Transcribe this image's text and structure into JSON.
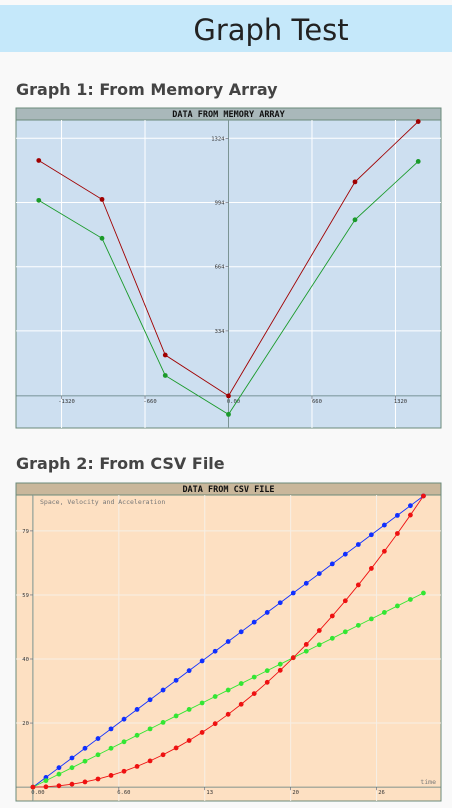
{
  "header": {
    "title": "Graph Test"
  },
  "chart_data": [
    {
      "type": "line",
      "heading": "Graph 1: From Memory Array",
      "title": "DATA FROM MEMORY ARRAY",
      "background": "#cddff0",
      "title_background": "#a9b8ba",
      "grid": true,
      "grid_color": "#ffffff",
      "x": [
        -1500,
        -1000,
        -500,
        0,
        1000,
        1500
      ],
      "series": [
        {
          "color": "#a00000",
          "values": [
            1210,
            1010,
            210,
            0,
            1100,
            1410
          ]
        },
        {
          "color": "#1a9a2a",
          "values": [
            1005,
            810,
            105,
            -95,
            905,
            1205
          ]
        }
      ],
      "xlim": [
        -1680,
        1680
      ],
      "xticks": [
        -1320,
        -660,
        {
          "value": 0,
          "label": "0.00"
        },
        660,
        1320
      ],
      "ylim": [
        -165,
        1418
      ],
      "yticks": [
        334,
        664,
        994,
        1324
      ]
    },
    {
      "type": "line",
      "heading": "Graph 2: From CSV File",
      "title": "DATA FROM CSV FILE",
      "subtitle": "Space, Velocity and Acceleration",
      "xlabel": "time",
      "background": "#fde0c2",
      "title_background": "#c9b79b",
      "grid": true,
      "grid_color": "#f6efe6",
      "x": [
        0,
        1,
        2,
        3,
        4,
        5,
        6,
        7,
        8,
        9,
        10,
        11,
        12,
        13,
        14,
        15,
        16,
        17,
        18,
        19,
        20,
        21,
        22,
        23,
        24,
        25,
        26,
        27,
        28,
        29,
        30
      ],
      "series": [
        {
          "color": "#1030ff",
          "values": [
            0,
            3,
            6,
            9,
            12,
            15,
            18,
            21,
            24,
            27,
            30,
            33,
            36,
            39,
            42,
            45,
            48,
            51,
            54,
            57,
            60,
            63,
            66,
            69,
            72,
            75,
            78,
            81,
            84,
            87,
            90
          ]
        },
        {
          "color": "#33e633",
          "values": [
            0,
            2,
            4,
            6,
            8,
            10,
            12,
            14,
            16,
            18,
            20,
            22,
            24,
            26,
            28,
            30,
            32,
            34,
            36,
            38,
            40,
            42,
            44,
            46,
            48,
            50,
            52,
            54,
            56,
            58,
            60
          ]
        },
        {
          "color": "#ee1111",
          "values": [
            0,
            0.1,
            0.4,
            0.9,
            1.6,
            2.5,
            3.6,
            4.9,
            6.4,
            8.1,
            10,
            12.1,
            14.4,
            16.9,
            19.6,
            22.5,
            25.6,
            28.9,
            32.4,
            36.1,
            40,
            44.1,
            48.4,
            52.9,
            57.6,
            62.5,
            67.6,
            72.9,
            78.4,
            84.1,
            90
          ]
        }
      ],
      "xlim": [
        -1.3,
        31.35
      ],
      "xticks": [
        {
          "value": 0,
          "label": "0.00"
        },
        {
          "value": 6.6,
          "label": "6.60"
        },
        {
          "value": 13.2,
          "label": "13"
        },
        {
          "value": 19.8,
          "label": "20"
        },
        {
          "value": 26.4,
          "label": "26"
        }
      ],
      "ylim": [
        -4.3,
        90.3
      ],
      "yticks": [
        {
          "value": 19.8,
          "label": "20"
        },
        {
          "value": 39.6,
          "label": "40"
        },
        {
          "value": 59.4,
          "label": "59"
        },
        {
          "value": 79.2,
          "label": "79"
        }
      ]
    }
  ]
}
